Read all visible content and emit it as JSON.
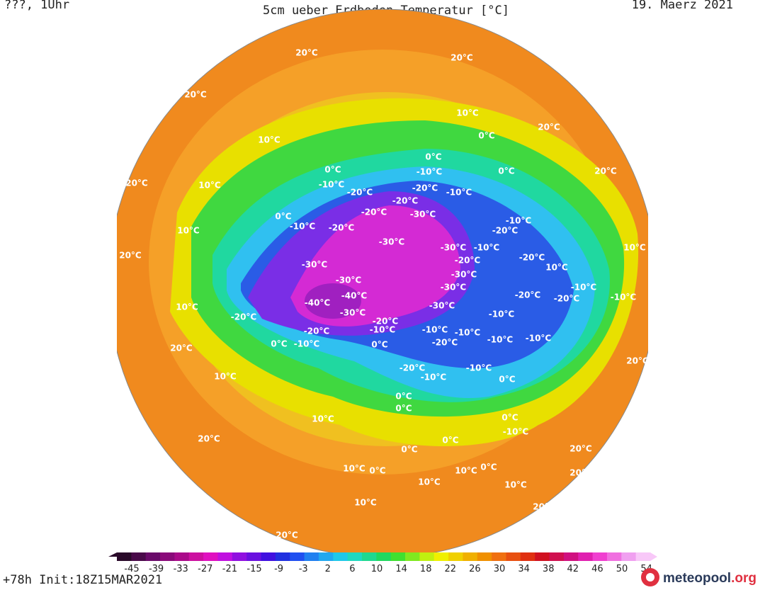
{
  "header": {
    "left": "???, 1Uhr",
    "title": "5cm ueber Erdboden Temperatur [°C]",
    "date": "19. Maerz 2021"
  },
  "footer": {
    "run": "+78h  Init:18Z15MAR2021",
    "logo": [
      "meteopool",
      ".org"
    ]
  },
  "colorbar": {
    "colors": [
      "#2a0a2a",
      "#4a0a4a",
      "#6a0a6a",
      "#8a0a7a",
      "#aa0a8a",
      "#cc10a0",
      "#e010c0",
      "#c010e0",
      "#9010e0",
      "#6a10e0",
      "#4010e0",
      "#2030e0",
      "#2050f0",
      "#2080f0",
      "#20a8f0",
      "#20c8e8",
      "#20d8c0",
      "#20d890",
      "#20d860",
      "#40e030",
      "#80e820",
      "#c0f010",
      "#f0f000",
      "#f0d000",
      "#f0b000",
      "#f09000",
      "#f07010",
      "#e85010",
      "#e03010",
      "#d01020",
      "#d01050",
      "#d01080",
      "#e020b0",
      "#f040d0",
      "#f070e0",
      "#f0a0f0",
      "#f8c8f8"
    ],
    "labels": [
      "-45",
      "-39",
      "-33",
      "-27",
      "-21",
      "-15",
      "-9",
      "-3",
      "2",
      "6",
      "10",
      "14",
      "18",
      "22",
      "26",
      "30",
      "34",
      "38",
      "42",
      "46",
      "50",
      "54"
    ]
  },
  "map": {
    "labels": [
      "20°C",
      "20°C",
      "20°C",
      "10°C",
      "0°C",
      "10°C",
      "20°C",
      "0°C",
      "-10°C",
      "0°C",
      "0°C",
      "20°C",
      "-10°C",
      "-20°C",
      "-20°C",
      "-10°C",
      "20°C",
      "10°C",
      "-20°C",
      "-20°C",
      "-30°C",
      "0°C",
      "-10°C",
      "-20°C",
      "-10°C",
      "-20°C",
      "-30°C",
      "-30°C",
      "-10°C",
      "10°C",
      "-30°C",
      "-20°C",
      "-20°C",
      "10°C",
      "-30°C",
      "-30°C",
      "-40°C",
      "-40°C",
      "-30°C",
      "-10°C",
      "-10°C",
      "-20°C",
      "-20°C",
      "-30°C",
      "-20°C",
      "-30°C",
      "-10°C",
      "-20°C",
      "-10°C",
      "-10°C",
      "-10°C",
      "0°C",
      "-10°C",
      "-20°C",
      "0°C",
      "-20°C",
      "-10°C",
      "-10°C",
      "-20°C",
      "-10°C",
      "-10°C",
      "0°C",
      "0°C",
      "0°C",
      "10°C",
      "20°C",
      "0°C",
      "-10°C",
      "0°C",
      "0°C",
      "10°C",
      "0°C",
      "10°C",
      "10°C",
      "0°C",
      "20°C",
      "20°C",
      "10°C",
      "10°C",
      "20°C",
      "20°C",
      "20°C",
      "10°C",
      "20°C",
      "10°C",
      "10°C",
      "20°C"
    ]
  }
}
